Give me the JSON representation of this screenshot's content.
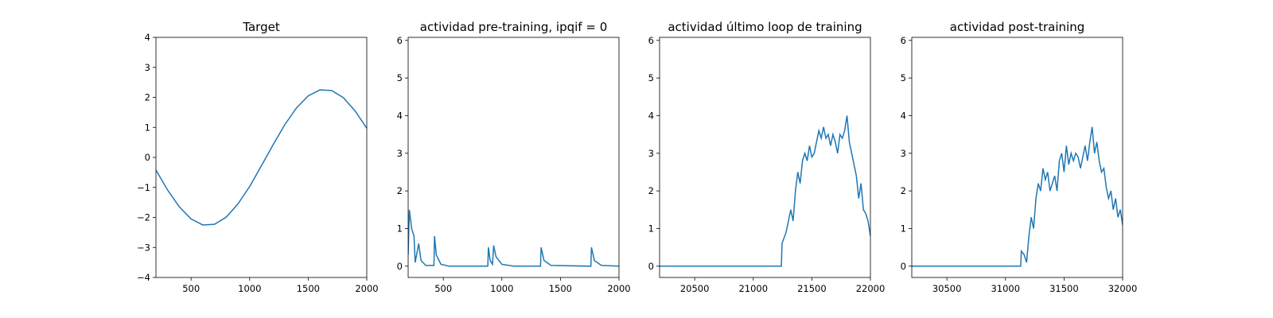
{
  "chart_data": [
    {
      "type": "line",
      "title": "Target",
      "x": [
        200,
        300,
        400,
        500,
        600,
        700,
        800,
        900,
        1000,
        1100,
        1200,
        1300,
        1400,
        1500,
        1600,
        1700,
        1800,
        1900,
        2000
      ],
      "values": [
        -0.42,
        -1.09,
        -1.65,
        -2.05,
        -2.25,
        -2.23,
        -1.99,
        -1.55,
        -0.97,
        -0.28,
        0.42,
        1.09,
        1.65,
        2.05,
        2.25,
        2.23,
        1.99,
        1.55,
        0.97
      ],
      "color": "#1f77b4",
      "xlim": [
        200,
        2000
      ],
      "xticks": [
        500,
        1000,
        1500,
        2000
      ],
      "ylim": [
        -4,
        4
      ],
      "yticks": [
        {
          "value": -4,
          "label": "−4"
        },
        {
          "value": -3,
          "label": "−3"
        },
        {
          "value": -2,
          "label": "−2"
        },
        {
          "value": -1,
          "label": "−1"
        },
        0,
        1,
        2,
        3,
        4
      ]
    },
    {
      "type": "line",
      "title": "actividad pre-training, ipqif = 0",
      "x": [
        200,
        210,
        230,
        250,
        260,
        290,
        310,
        350,
        420,
        425,
        440,
        480,
        550,
        880,
        885,
        900,
        920,
        930,
        950,
        1000,
        1100,
        1330,
        1335,
        1360,
        1420,
        1760,
        1765,
        1790,
        1850,
        2000
      ],
      "values": [
        0.3,
        1.5,
        1.0,
        0.8,
        0.1,
        0.6,
        0.15,
        0.02,
        0.02,
        0.8,
        0.3,
        0.05,
        0,
        0,
        0.5,
        0.15,
        0.05,
        0.55,
        0.25,
        0.05,
        0,
        0,
        0.5,
        0.15,
        0.02,
        0,
        0.5,
        0.15,
        0.02,
        0
      ],
      "color": "#1f77b4",
      "xlim": [
        200,
        2000
      ],
      "xticks": [
        500,
        1000,
        1500,
        2000
      ],
      "ylim": [
        -0.3,
        6.08
      ],
      "yticks": [
        0,
        1,
        2,
        3,
        4,
        5,
        6
      ]
    },
    {
      "type": "line",
      "title": "actividad último loop de training",
      "x": [
        20200,
        21240,
        21245,
        21280,
        21300,
        21320,
        21340,
        21360,
        21380,
        21400,
        21420,
        21440,
        21460,
        21480,
        21500,
        21520,
        21540,
        21560,
        21580,
        21600,
        21620,
        21640,
        21660,
        21680,
        21700,
        21720,
        21740,
        21760,
        21780,
        21800,
        21820,
        21840,
        21860,
        21880,
        21900,
        21920,
        21940,
        21960,
        21980,
        22000
      ],
      "values": [
        0,
        0,
        0.6,
        0.9,
        1.2,
        1.5,
        1.2,
        2.0,
        2.5,
        2.2,
        2.8,
        3.0,
        2.8,
        3.2,
        2.9,
        3.0,
        3.3,
        3.6,
        3.4,
        3.7,
        3.4,
        3.5,
        3.2,
        3.5,
        3.3,
        3.0,
        3.5,
        3.4,
        3.6,
        4.0,
        3.3,
        3.0,
        2.7,
        2.4,
        1.8,
        2.2,
        1.5,
        1.4,
        1.2,
        0.8
      ],
      "color": "#1f77b4",
      "xlim": [
        20200,
        22000
      ],
      "xticks": [
        20500,
        21000,
        21500,
        22000
      ],
      "ylim": [
        -0.3,
        6.08
      ],
      "yticks": [
        0,
        1,
        2,
        3,
        4,
        5,
        6
      ]
    },
    {
      "type": "line",
      "title": "actividad post-training",
      "x": [
        30200,
        31130,
        31135,
        31160,
        31180,
        31200,
        31220,
        31240,
        31260,
        31280,
        31300,
        31320,
        31340,
        31360,
        31380,
        31400,
        31420,
        31440,
        31460,
        31480,
        31500,
        31520,
        31540,
        31560,
        31580,
        31600,
        31620,
        31640,
        31660,
        31680,
        31700,
        31720,
        31740,
        31760,
        31780,
        31800,
        31820,
        31840,
        31860,
        31880,
        31900,
        31920,
        31940,
        31960,
        31980,
        32000
      ],
      "values": [
        0,
        0,
        0.4,
        0.3,
        0.1,
        0.8,
        1.3,
        1.0,
        1.8,
        2.2,
        2.0,
        2.6,
        2.3,
        2.5,
        2.0,
        2.2,
        2.4,
        2.0,
        2.8,
        3.0,
        2.5,
        3.2,
        2.7,
        3.0,
        2.8,
        3.0,
        2.9,
        2.6,
        2.9,
        3.2,
        2.8,
        3.3,
        3.7,
        3.0,
        3.3,
        2.8,
        2.5,
        2.6,
        2.1,
        1.8,
        2.0,
        1.5,
        1.8,
        1.3,
        1.5,
        1.1
      ],
      "color": "#1f77b4",
      "xlim": [
        30200,
        32000
      ],
      "xticks": [
        30500,
        31000,
        31500,
        32000
      ],
      "ylim": [
        -0.3,
        6.08
      ],
      "yticks": [
        0,
        1,
        2,
        3,
        4,
        5,
        6
      ]
    }
  ]
}
